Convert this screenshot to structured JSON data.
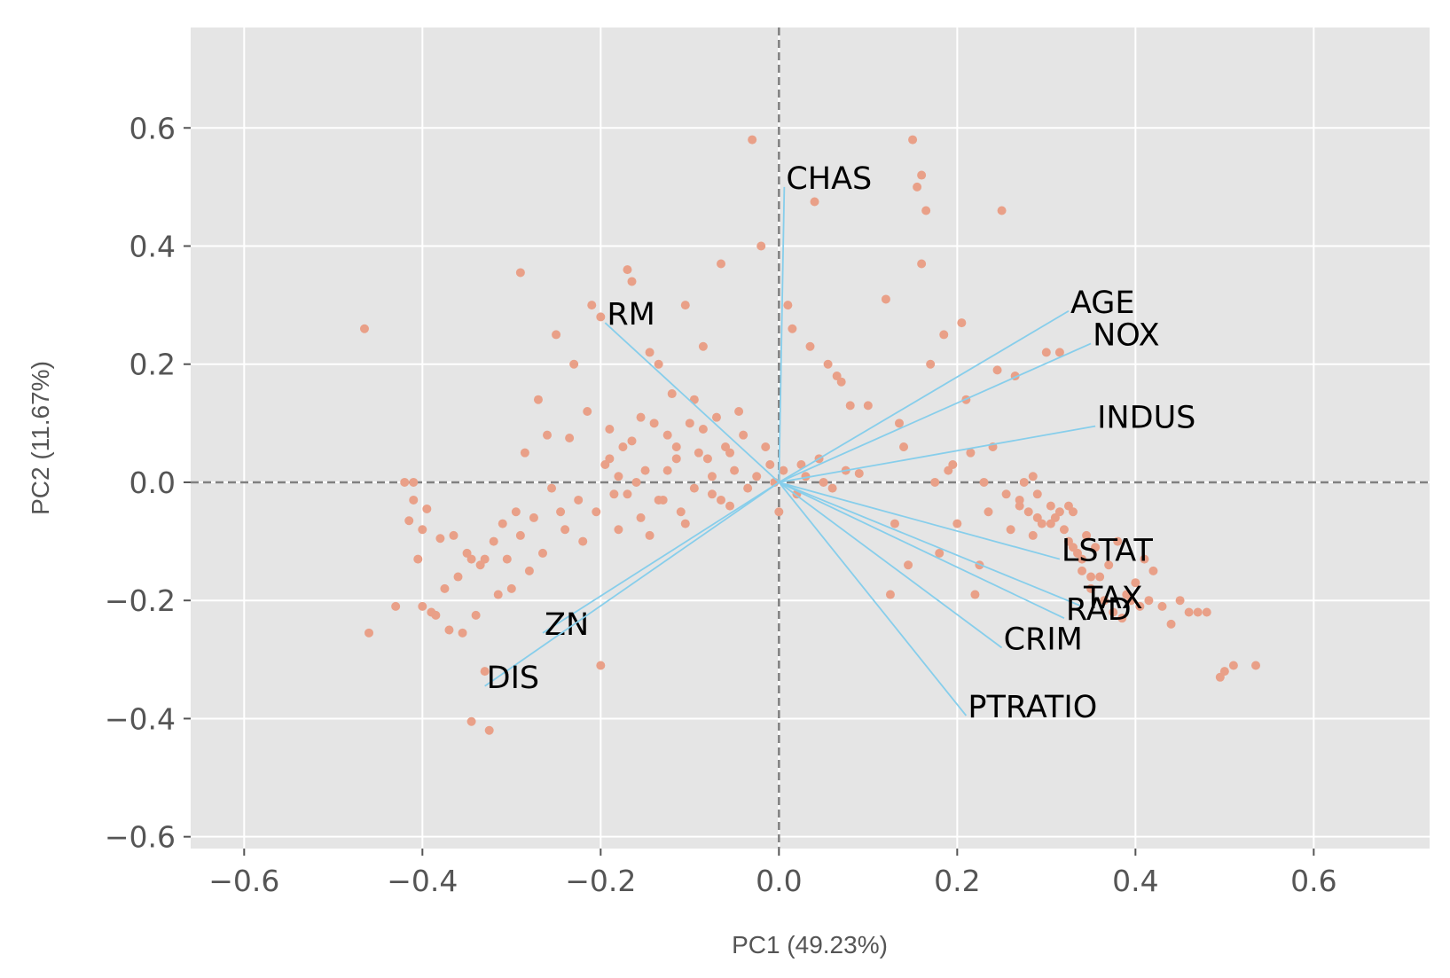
{
  "chart_data": {
    "type": "scatter",
    "title": "",
    "xlabel": "PC1 (49.23%)",
    "ylabel": "PC2 (11.67%)",
    "xlim": [
      -0.66,
      0.73
    ],
    "ylim": [
      -0.62,
      0.77
    ],
    "xticks": [
      -0.6,
      -0.4,
      -0.2,
      0.0,
      0.2,
      0.4,
      0.6
    ],
    "yticks": [
      -0.6,
      -0.4,
      -0.2,
      0.0,
      0.2,
      0.4,
      0.6
    ],
    "xtick_labels": [
      "−0.6",
      "−0.4",
      "−0.2",
      "0.0",
      "0.2",
      "0.4",
      "0.6"
    ],
    "ytick_labels": [
      "−0.6",
      "−0.4",
      "−0.2",
      "0.0",
      "0.2",
      "0.4",
      "0.6"
    ],
    "grid": true,
    "reference_lines": {
      "x": 0,
      "y": 0
    },
    "colors": {
      "background": "#e5e5e5",
      "grid": "#ffffff",
      "points": "#e9a088",
      "loadings": "#87ceeb",
      "reference": "#808080",
      "labels": "#000000"
    },
    "loadings": [
      {
        "name": "CHAS",
        "x": 0.006,
        "y": 0.5
      },
      {
        "name": "RM",
        "x": -0.195,
        "y": 0.27
      },
      {
        "name": "AGE",
        "x": 0.325,
        "y": 0.29
      },
      {
        "name": "NOX",
        "x": 0.35,
        "y": 0.235
      },
      {
        "name": "INDUS",
        "x": 0.355,
        "y": 0.095
      },
      {
        "name": "LSTAT",
        "x": 0.315,
        "y": -0.13
      },
      {
        "name": "TAX",
        "x": 0.34,
        "y": -0.21
      },
      {
        "name": "RAD",
        "x": 0.32,
        "y": -0.23
      },
      {
        "name": "CRIM",
        "x": 0.25,
        "y": -0.28
      },
      {
        "name": "PTRATIO",
        "x": 0.21,
        "y": -0.395
      },
      {
        "name": "ZN",
        "x": -0.265,
        "y": -0.255
      },
      {
        "name": "DIS",
        "x": -0.33,
        "y": -0.345
      }
    ],
    "points": [
      [
        -0.465,
        0.26
      ],
      [
        -0.46,
        -0.255
      ],
      [
        -0.43,
        -0.21
      ],
      [
        -0.42,
        0.0
      ],
      [
        -0.415,
        -0.065
      ],
      [
        -0.41,
        0.0
      ],
      [
        -0.41,
        -0.03
      ],
      [
        -0.405,
        -0.13
      ],
      [
        -0.4,
        -0.08
      ],
      [
        -0.4,
        -0.21
      ],
      [
        -0.395,
        -0.045
      ],
      [
        -0.39,
        -0.22
      ],
      [
        -0.385,
        -0.225
      ],
      [
        -0.38,
        -0.095
      ],
      [
        -0.375,
        -0.18
      ],
      [
        -0.37,
        -0.25
      ],
      [
        -0.365,
        -0.09
      ],
      [
        -0.36,
        -0.16
      ],
      [
        -0.355,
        -0.255
      ],
      [
        -0.35,
        -0.12
      ],
      [
        -0.345,
        -0.13
      ],
      [
        -0.345,
        -0.405
      ],
      [
        -0.34,
        -0.225
      ],
      [
        -0.335,
        -0.14
      ],
      [
        -0.33,
        -0.13
      ],
      [
        -0.325,
        -0.42
      ],
      [
        -0.32,
        -0.1
      ],
      [
        -0.315,
        -0.19
      ],
      [
        -0.31,
        -0.07
      ],
      [
        -0.305,
        -0.13
      ],
      [
        -0.3,
        -0.18
      ],
      [
        -0.295,
        -0.05
      ],
      [
        -0.29,
        0.355
      ],
      [
        -0.29,
        -0.09
      ],
      [
        -0.285,
        0.05
      ],
      [
        -0.28,
        -0.15
      ],
      [
        -0.275,
        -0.06
      ],
      [
        -0.27,
        0.14
      ],
      [
        -0.265,
        -0.12
      ],
      [
        -0.26,
        0.08
      ],
      [
        -0.255,
        -0.01
      ],
      [
        -0.25,
        0.25
      ],
      [
        -0.245,
        -0.05
      ],
      [
        -0.24,
        -0.08
      ],
      [
        -0.235,
        0.075
      ],
      [
        -0.23,
        0.2
      ],
      [
        -0.225,
        -0.03
      ],
      [
        -0.22,
        -0.1
      ],
      [
        -0.215,
        0.12
      ],
      [
        -0.21,
        0.3
      ],
      [
        -0.205,
        -0.05
      ],
      [
        -0.2,
        0.28
      ],
      [
        -0.2,
        -0.31
      ],
      [
        -0.195,
        0.03
      ],
      [
        -0.19,
        0.09
      ],
      [
        -0.185,
        -0.02
      ],
      [
        -0.18,
        -0.08
      ],
      [
        -0.175,
        0.06
      ],
      [
        -0.17,
        0.36
      ],
      [
        -0.165,
        0.34
      ],
      [
        -0.16,
        0.0
      ],
      [
        -0.155,
        -0.06
      ],
      [
        -0.15,
        0.02
      ],
      [
        -0.145,
        0.22
      ],
      [
        -0.14,
        0.1
      ],
      [
        -0.135,
        0.2
      ],
      [
        -0.13,
        -0.03
      ],
      [
        -0.125,
        0.08
      ],
      [
        -0.12,
        0.15
      ],
      [
        -0.115,
        0.04
      ],
      [
        -0.11,
        -0.05
      ],
      [
        -0.105,
        0.3
      ],
      [
        -0.1,
        0.1
      ],
      [
        -0.095,
        -0.01
      ],
      [
        -0.09,
        0.05
      ],
      [
        -0.085,
        0.23
      ],
      [
        -0.08,
        0.04
      ],
      [
        -0.075,
        -0.02
      ],
      [
        -0.07,
        0.11
      ],
      [
        -0.065,
        0.37
      ],
      [
        -0.06,
        0.06
      ],
      [
        -0.055,
        -0.04
      ],
      [
        -0.05,
        0.02
      ],
      [
        -0.045,
        0.12
      ],
      [
        -0.04,
        0.08
      ],
      [
        -0.035,
        -0.01
      ],
      [
        -0.03,
        0.58
      ],
      [
        -0.025,
        0.01
      ],
      [
        -0.02,
        0.4
      ],
      [
        -0.015,
        0.06
      ],
      [
        -0.01,
        0.03
      ],
      [
        -0.005,
        0.0
      ],
      [
        0.0,
        -0.05
      ],
      [
        0.005,
        0.02
      ],
      [
        0.01,
        0.3
      ],
      [
        0.015,
        0.26
      ],
      [
        0.02,
        -0.02
      ],
      [
        0.025,
        0.03
      ],
      [
        0.03,
        0.01
      ],
      [
        0.035,
        0.23
      ],
      [
        0.04,
        0.475
      ],
      [
        0.045,
        0.04
      ],
      [
        0.05,
        0.0
      ],
      [
        0.055,
        0.2
      ],
      [
        0.06,
        -0.01
      ],
      [
        0.065,
        0.18
      ],
      [
        0.07,
        0.17
      ],
      [
        0.075,
        0.02
      ],
      [
        0.08,
        0.13
      ],
      [
        0.09,
        0.015
      ],
      [
        0.1,
        0.13
      ],
      [
        0.12,
        0.31
      ],
      [
        0.125,
        -0.19
      ],
      [
        0.13,
        -0.07
      ],
      [
        0.135,
        0.1
      ],
      [
        0.14,
        0.06
      ],
      [
        0.145,
        -0.14
      ],
      [
        0.15,
        0.58
      ],
      [
        0.155,
        0.5
      ],
      [
        0.16,
        0.52
      ],
      [
        0.16,
        0.37
      ],
      [
        0.165,
        0.46
      ],
      [
        0.17,
        0.2
      ],
      [
        0.175,
        0.0
      ],
      [
        0.18,
        -0.12
      ],
      [
        0.185,
        0.25
      ],
      [
        0.19,
        0.02
      ],
      [
        0.195,
        0.03
      ],
      [
        0.2,
        -0.07
      ],
      [
        0.205,
        0.27
      ],
      [
        0.21,
        0.14
      ],
      [
        0.215,
        0.05
      ],
      [
        0.22,
        -0.19
      ],
      [
        0.225,
        -0.14
      ],
      [
        0.23,
        0.0
      ],
      [
        0.235,
        -0.05
      ],
      [
        0.24,
        0.06
      ],
      [
        0.245,
        0.19
      ],
      [
        0.25,
        0.46
      ],
      [
        0.255,
        -0.02
      ],
      [
        0.26,
        -0.08
      ],
      [
        0.265,
        0.18
      ],
      [
        0.27,
        -0.04
      ],
      [
        0.275,
        0.0
      ],
      [
        0.28,
        -0.05
      ],
      [
        0.285,
        -0.09
      ],
      [
        0.29,
        -0.02
      ],
      [
        0.295,
        -0.07
      ],
      [
        0.3,
        0.22
      ],
      [
        0.305,
        -0.04
      ],
      [
        0.31,
        -0.06
      ],
      [
        0.315,
        0.22
      ],
      [
        0.32,
        -0.08
      ],
      [
        0.325,
        -0.1
      ],
      [
        0.33,
        -0.05
      ],
      [
        0.335,
        -0.12
      ],
      [
        0.34,
        -0.15
      ],
      [
        0.345,
        -0.09
      ],
      [
        0.35,
        -0.18
      ],
      [
        0.355,
        -0.11
      ],
      [
        0.36,
        -0.16
      ],
      [
        0.365,
        -0.2
      ],
      [
        0.37,
        -0.14
      ],
      [
        0.375,
        -0.22
      ],
      [
        0.38,
        -0.1
      ],
      [
        0.385,
        -0.23
      ],
      [
        0.39,
        -0.19
      ],
      [
        0.395,
        -0.2
      ],
      [
        0.4,
        -0.17
      ],
      [
        0.405,
        -0.21
      ],
      [
        0.41,
        -0.13
      ],
      [
        0.415,
        -0.2
      ],
      [
        0.42,
        -0.15
      ],
      [
        0.43,
        -0.21
      ],
      [
        0.44,
        -0.24
      ],
      [
        0.45,
        -0.2
      ],
      [
        0.46,
        -0.22
      ],
      [
        0.47,
        -0.22
      ],
      [
        0.48,
        -0.22
      ],
      [
        0.495,
        -0.33
      ],
      [
        0.5,
        -0.32
      ],
      [
        0.51,
        -0.31
      ],
      [
        0.535,
        -0.31
      ],
      [
        0.27,
        -0.03
      ],
      [
        0.285,
        0.01
      ],
      [
        0.29,
        -0.06
      ],
      [
        0.305,
        -0.07
      ],
      [
        0.315,
        -0.05
      ],
      [
        0.325,
        -0.04
      ],
      [
        0.33,
        -0.11
      ],
      [
        0.34,
        -0.13
      ],
      [
        0.35,
        -0.16
      ],
      [
        -0.33,
        -0.32
      ],
      [
        -0.19,
        0.04
      ],
      [
        -0.18,
        0.01
      ],
      [
        -0.17,
        -0.02
      ],
      [
        -0.165,
        0.07
      ],
      [
        -0.155,
        0.11
      ],
      [
        -0.145,
        -0.09
      ],
      [
        -0.135,
        -0.03
      ],
      [
        -0.125,
        0.02
      ],
      [
        -0.115,
        0.06
      ],
      [
        -0.105,
        -0.07
      ],
      [
        -0.095,
        0.14
      ],
      [
        -0.085,
        0.09
      ],
      [
        -0.075,
        0.01
      ],
      [
        -0.065,
        -0.03
      ],
      [
        -0.055,
        0.05
      ]
    ]
  }
}
